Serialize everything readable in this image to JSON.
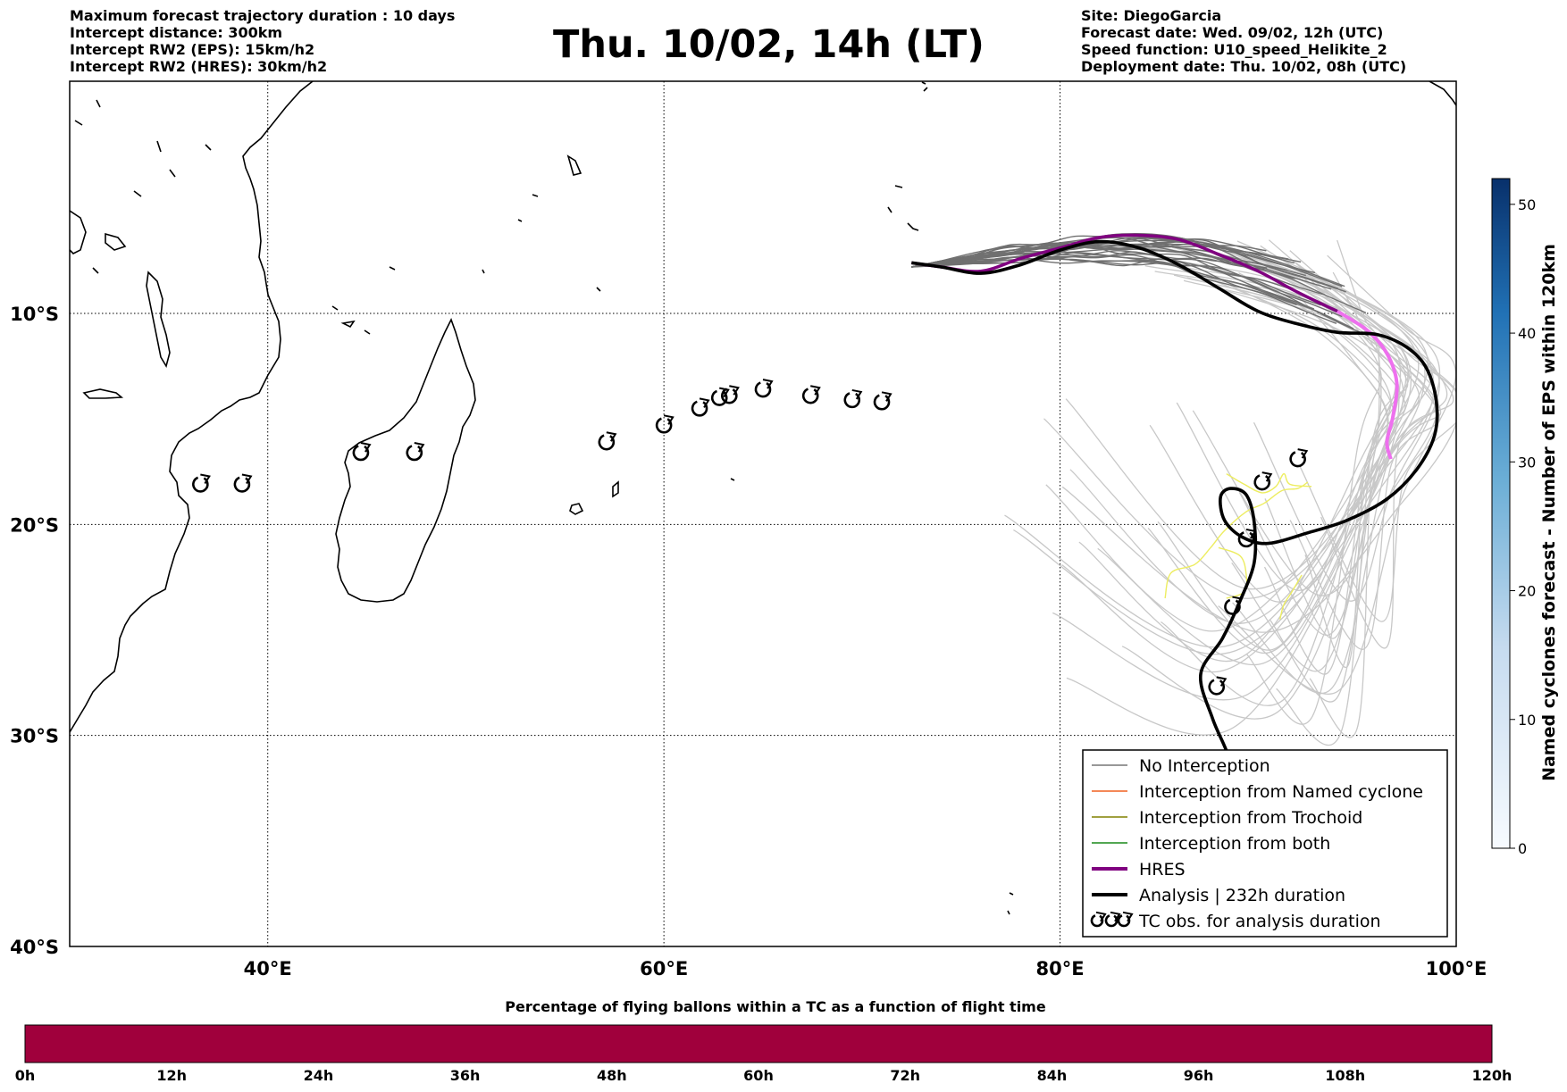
{
  "header_left": [
    "Maximum forecast trajectory duration : 10 days",
    "Intercept distance: 300km",
    "Intercept RW2 (EPS):  15km/h2",
    "Intercept RW2 (HRES): 30km/h2"
  ],
  "title": "Thu. 10/02, 14h (LT)",
  "header_right": [
    "Site: DiegoGarcia",
    "Forecast date: Wed. 09/02, 12h (UTC)",
    "Speed function: U10_speed_Helikite_2",
    "Deployment date: Thu. 10/02, 08h (UTC)"
  ],
  "map": {
    "lon_range": [
      30,
      100
    ],
    "lat_range": [
      -40,
      1
    ],
    "lon_ticks": [
      {
        "value": 40,
        "label": "40°E"
      },
      {
        "value": 60,
        "label": "60°E"
      },
      {
        "value": 80,
        "label": "80°E"
      },
      {
        "value": 100,
        "label": "100°E"
      }
    ],
    "lat_ticks": [
      {
        "value": -10,
        "label": "10°S"
      },
      {
        "value": -20,
        "label": "20°S"
      },
      {
        "value": -30,
        "label": "30°S"
      },
      {
        "value": -40,
        "label": "40°S"
      }
    ],
    "grid": true
  },
  "legend": {
    "items": [
      {
        "label": "No Interception",
        "color": "#777777",
        "width": 1.5
      },
      {
        "label": "Interception from Named cyclone",
        "color": "#f06020",
        "width": 1.5
      },
      {
        "label": "Interception from Trochoid",
        "color": "#808000",
        "width": 1.5
      },
      {
        "label": "Interception from both",
        "color": "#1a8a1a",
        "width": 1.5
      },
      {
        "label": "HRES",
        "color": "#800080",
        "width": 4
      },
      {
        "label": "Analysis | 232h duration",
        "color": "#000000",
        "width": 4
      },
      {
        "label": "TC obs. for analysis duration",
        "color": "#000000",
        "symbol": "cyclone"
      }
    ]
  },
  "colorbar_right": {
    "label": "Named cyclones forecast - Number of EPS within 120km",
    "ticks": [
      0,
      10,
      20,
      30,
      40,
      50
    ],
    "range": [
      0,
      52
    ],
    "colors": [
      "#f7fbff",
      "#08306b"
    ]
  },
  "colorbar_bottom": {
    "title": "Percentage of flying ballons within a TC as a function of flight time",
    "color": "#a0003c",
    "ticks": [
      "0h",
      "12h",
      "24h",
      "36h",
      "48h",
      "60h",
      "72h",
      "84h",
      "96h",
      "108h",
      "120h"
    ]
  },
  "analysis_track": [
    [
      72.5,
      -7.6
    ],
    [
      74,
      -7.8
    ],
    [
      76,
      -8.1
    ],
    [
      78,
      -7.7
    ],
    [
      80,
      -7.0
    ],
    [
      82,
      -6.6
    ],
    [
      84,
      -6.9
    ],
    [
      86,
      -7.7
    ],
    [
      88,
      -8.8
    ],
    [
      90,
      -9.9
    ],
    [
      92,
      -10.5
    ],
    [
      94,
      -10.9
    ],
    [
      96,
      -11.0
    ],
    [
      97.5,
      -11.6
    ],
    [
      98.5,
      -12.6
    ],
    [
      99,
      -14.2
    ],
    [
      98.9,
      -15.8
    ],
    [
      98,
      -17.4
    ],
    [
      96.5,
      -18.8
    ],
    [
      94.5,
      -19.8
    ],
    [
      92.5,
      -20.4
    ],
    [
      90.5,
      -20.9
    ],
    [
      89.2,
      -20.6
    ],
    [
      88.3,
      -19.8
    ],
    [
      88.1,
      -18.7
    ],
    [
      88.6,
      -18.3
    ],
    [
      89.4,
      -18.6
    ],
    [
      89.8,
      -19.9
    ],
    [
      89.8,
      -21.8
    ],
    [
      89.1,
      -23.6
    ],
    [
      88.2,
      -25.4
    ],
    [
      87.1,
      -27.1
    ],
    [
      87.7,
      -29.2
    ],
    [
      88.5,
      -31.0
    ],
    [
      88.6,
      -32.3
    ]
  ],
  "hres_track": [
    [
      72.5,
      -7.6
    ],
    [
      74,
      -7.8
    ],
    [
      76,
      -8.0
    ],
    [
      78,
      -7.4
    ],
    [
      80,
      -6.9
    ],
    [
      82,
      -6.4
    ],
    [
      84,
      -6.3
    ],
    [
      86,
      -6.5
    ],
    [
      88,
      -7.2
    ],
    [
      90,
      -8.0
    ],
    [
      92,
      -9.0
    ],
    [
      94,
      -9.9
    ],
    [
      95.5,
      -10.8
    ],
    [
      96.5,
      -11.9
    ],
    [
      97,
      -13.3
    ],
    [
      96.8,
      -14.9
    ],
    [
      96.5,
      -16.1
    ],
    [
      96.7,
      -16.9
    ]
  ],
  "yellow_tracks": [
    [
      [
        85.3,
        -23.5
      ],
      [
        85.6,
        -22.3
      ],
      [
        86.8,
        -21.9
      ],
      [
        87.6,
        -21.1
      ],
      [
        88.3,
        -20.3
      ],
      [
        89.4,
        -19.4
      ],
      [
        90.3,
        -19.0
      ],
      [
        91.2,
        -18.4
      ],
      [
        92.0,
        -18.3
      ],
      [
        92.5,
        -18.0
      ]
    ],
    [
      [
        88.4,
        -17.6
      ],
      [
        89.3,
        -18.1
      ],
      [
        90.2,
        -18.5
      ],
      [
        90.9,
        -18.2
      ],
      [
        91.3,
        -17.6
      ],
      [
        91.6,
        -18.1
      ],
      [
        92.7,
        -18.2
      ]
    ],
    [
      [
        88.0,
        -21.1
      ],
      [
        89.1,
        -21.5
      ],
      [
        89.4,
        -22.4
      ],
      [
        89.3,
        -23.2
      ],
      [
        88.4,
        -23.5
      ]
    ],
    [
      [
        92.2,
        -22.4
      ],
      [
        91.7,
        -23.2
      ],
      [
        91.3,
        -23.8
      ],
      [
        91.1,
        -24.5
      ]
    ]
  ],
  "tc_obs": [
    [
      36.6,
      -18.1
    ],
    [
      38.7,
      -18.1
    ],
    [
      44.7,
      -16.6
    ],
    [
      47.4,
      -16.6
    ],
    [
      57.1,
      -16.1
    ],
    [
      60,
      -15.3
    ],
    [
      61.8,
      -14.5
    ],
    [
      62.8,
      -14.0
    ],
    [
      63.3,
      -13.9
    ],
    [
      65,
      -13.6
    ],
    [
      67.4,
      -13.9
    ],
    [
      69.5,
      -14.1
    ],
    [
      71,
      -14.2
    ],
    [
      88.7,
      -23.9
    ],
    [
      87.9,
      -27.7
    ],
    [
      89.4,
      -20.7
    ],
    [
      90.2,
      -18.0
    ],
    [
      92.0,
      -16.9
    ]
  ]
}
